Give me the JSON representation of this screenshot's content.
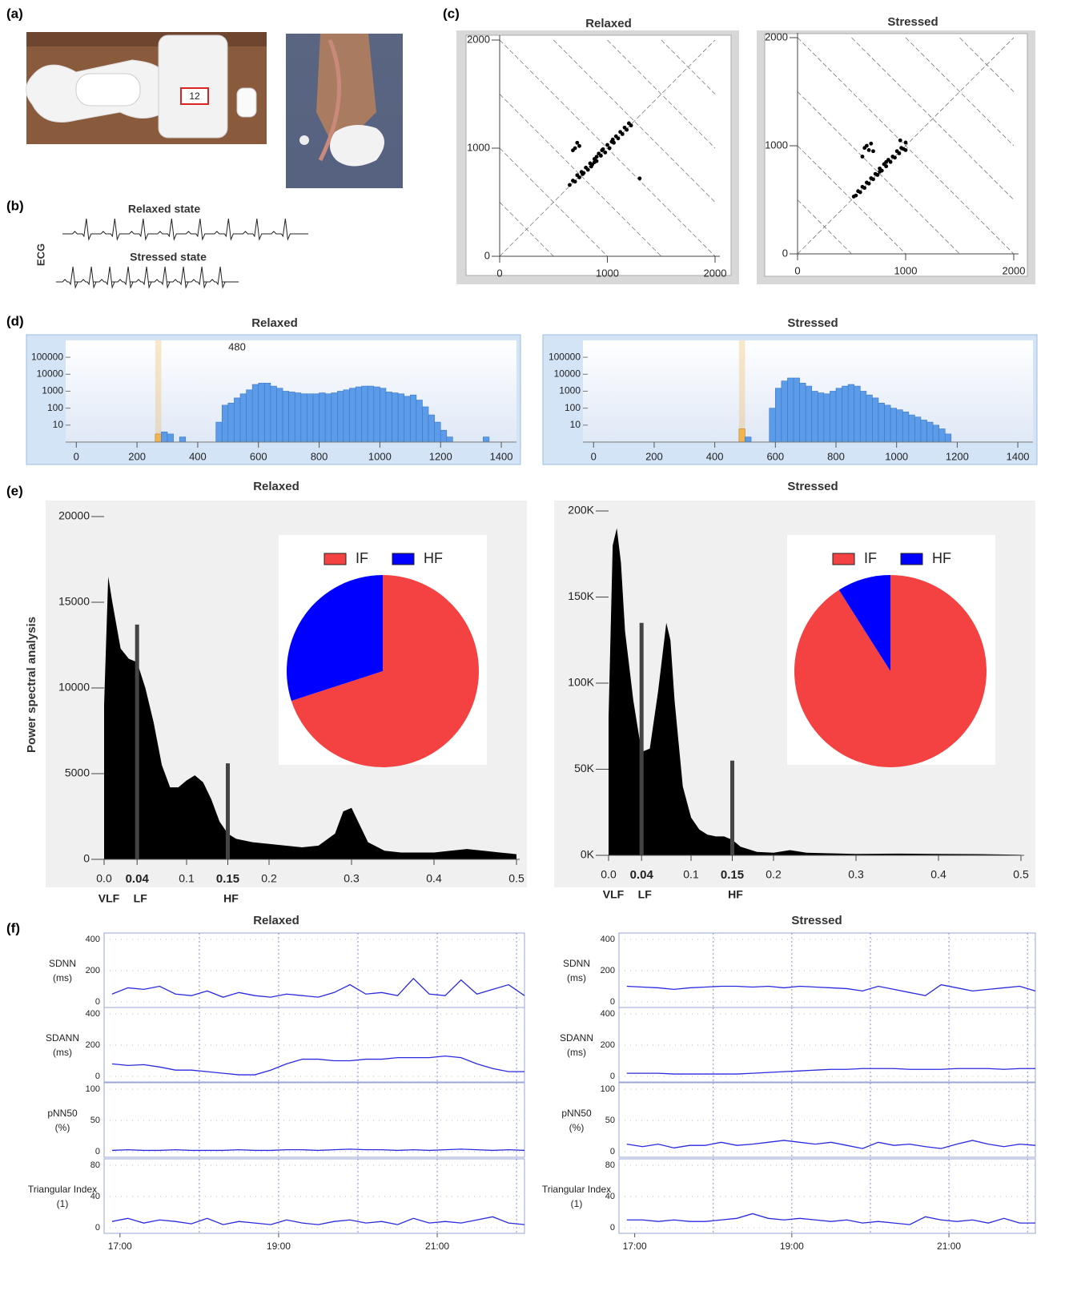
{
  "panel_labels": [
    "(a)",
    "(b)",
    "(c)",
    "(d)",
    "(e)",
    "(f)"
  ],
  "photo": {
    "device_label": "12"
  },
  "ecg": {
    "ylabel": "ECG",
    "traces": [
      "Relaxed state",
      "Stressed  state"
    ]
  },
  "chart_data": [
    {
      "type": "scatter",
      "title": "Relaxed",
      "color": "#000000",
      "x": [
        650,
        680,
        700,
        720,
        740,
        760,
        780,
        800,
        820,
        840,
        860,
        880,
        900,
        920,
        940,
        960,
        980,
        1000,
        1020,
        1040,
        1060,
        1080,
        1100,
        1120,
        1140,
        1160,
        1180,
        1200,
        1220,
        700,
        720,
        680,
        740,
        770,
        900,
        850,
        1300,
        950,
        1050,
        880
      ],
      "y": [
        660,
        700,
        690,
        750,
        730,
        780,
        770,
        820,
        800,
        860,
        850,
        900,
        880,
        950,
        930,
        990,
        960,
        1030,
        1000,
        1060,
        1050,
        1110,
        1090,
        1150,
        1130,
        1190,
        1170,
        1230,
        1210,
        1000,
        1050,
        980,
        1020,
        760,
        920,
        830,
        720,
        980,
        1080,
        870
      ],
      "xlim": [
        0,
        2000
      ],
      "ylim": [
        0,
        2000
      ],
      "xticks": [
        0,
        1000,
        2000
      ],
      "yticks": [
        0,
        1000,
        2000
      ]
    },
    {
      "type": "scatter",
      "title": "Stressed",
      "color": "#000000",
      "x": [
        520,
        540,
        560,
        580,
        600,
        620,
        640,
        660,
        680,
        700,
        720,
        740,
        760,
        780,
        800,
        820,
        840,
        860,
        880,
        900,
        920,
        940,
        960,
        980,
        1000,
        620,
        640,
        660,
        680,
        700,
        600,
        1000,
        950,
        820,
        760
      ],
      "y": [
        530,
        540,
        580,
        570,
        620,
        610,
        660,
        650,
        700,
        690,
        740,
        730,
        790,
        770,
        830,
        810,
        870,
        850,
        900,
        890,
        950,
        930,
        980,
        970,
        1030,
        980,
        1000,
        960,
        1020,
        950,
        900,
        960,
        1050,
        850,
        760
      ],
      "xlim": [
        0,
        2000
      ],
      "ylim": [
        0,
        2000
      ],
      "xticks": [
        0,
        1000,
        2000
      ],
      "yticks": [
        0,
        1000,
        2000
      ]
    },
    {
      "type": "histogram",
      "title": "Relaxed",
      "annotation": "480",
      "color": "#5b9be8",
      "log_y": true,
      "highlight": {
        "x": 260,
        "color": "#f0b450"
      },
      "bins": [
        240,
        260,
        280,
        300,
        320,
        340,
        360,
        380,
        400,
        420,
        440,
        460,
        480,
        500,
        520,
        540,
        560,
        580,
        600,
        620,
        640,
        660,
        680,
        700,
        720,
        740,
        760,
        780,
        800,
        820,
        840,
        860,
        880,
        900,
        920,
        940,
        960,
        980,
        1000,
        1020,
        1040,
        1060,
        1080,
        1100,
        1120,
        1140,
        1160,
        1180,
        1200,
        1220,
        1240,
        1260,
        1280,
        1300,
        1320,
        1340,
        1360
      ],
      "values": [
        0,
        3,
        4,
        3,
        0,
        2,
        0,
        0,
        0,
        0,
        0,
        15,
        150,
        200,
        400,
        700,
        1200,
        2500,
        3000,
        3000,
        2000,
        1500,
        1000,
        900,
        800,
        700,
        700,
        700,
        800,
        700,
        800,
        1000,
        1200,
        1500,
        1800,
        2000,
        2000,
        1800,
        1500,
        900,
        800,
        700,
        500,
        600,
        300,
        120,
        40,
        15,
        5,
        2,
        0,
        0,
        0,
        0,
        0,
        2
      ],
      "xlim": [
        -35,
        1450
      ],
      "ylim": [
        1,
        300000
      ],
      "xticks": [
        0,
        200,
        400,
        600,
        800,
        1000,
        1200,
        1400
      ],
      "yticks": [
        10,
        100,
        1000,
        10000,
        100000
      ]
    },
    {
      "type": "histogram",
      "title": "Stressed",
      "color": "#5b9be8",
      "log_y": true,
      "highlight": {
        "x": 480,
        "color": "#f0b450"
      },
      "bins": [
        240,
        260,
        280,
        300,
        320,
        340,
        360,
        380,
        400,
        420,
        440,
        460,
        480,
        500,
        520,
        540,
        560,
        580,
        600,
        620,
        640,
        660,
        680,
        700,
        720,
        740,
        760,
        780,
        800,
        820,
        840,
        860,
        880,
        900,
        920,
        940,
        960,
        980,
        1000,
        1020,
        1040,
        1060,
        1080,
        1100,
        1120,
        1140,
        1160,
        1180,
        1200,
        1220,
        1240,
        1260,
        1280,
        1300,
        1320,
        1340,
        1360
      ],
      "values": [
        0,
        0,
        0,
        0,
        0,
        0,
        0,
        0,
        0,
        0,
        0,
        0,
        6,
        2,
        0,
        0,
        0,
        100,
        1500,
        4000,
        6000,
        6000,
        3000,
        2000,
        1000,
        800,
        700,
        1000,
        1500,
        2000,
        2500,
        2000,
        1000,
        600,
        400,
        200,
        150,
        100,
        80,
        60,
        40,
        30,
        20,
        15,
        10,
        6,
        3,
        0,
        0,
        0,
        0,
        0,
        0,
        0,
        0,
        0
      ],
      "xlim": [
        -35,
        1450
      ],
      "ylim": [
        1,
        300000
      ],
      "xticks": [
        0,
        200,
        400,
        600,
        800,
        1000,
        1200,
        1400
      ],
      "yticks": [
        10,
        100,
        1000,
        10000,
        100000
      ]
    },
    {
      "type": "area",
      "title": "Relaxed",
      "ylabel": "Power spectral analysis",
      "color": "#000000",
      "x": [
        0,
        0.005,
        0.01,
        0.02,
        0.03,
        0.04,
        0.05,
        0.06,
        0.07,
        0.08,
        0.09,
        0.1,
        0.11,
        0.12,
        0.13,
        0.14,
        0.15,
        0.16,
        0.18,
        0.2,
        0.22,
        0.24,
        0.26,
        0.28,
        0.29,
        0.3,
        0.31,
        0.32,
        0.34,
        0.36,
        0.4,
        0.42,
        0.44,
        0.46,
        0.48,
        0.5
      ],
      "values": [
        9000,
        16500,
        15000,
        12300,
        11700,
        11500,
        10000,
        8000,
        5500,
        4200,
        4200,
        4600,
        4900,
        4500,
        3500,
        2200,
        1500,
        1200,
        1000,
        900,
        800,
        700,
        800,
        1500,
        2800,
        3000,
        2000,
        1000,
        500,
        400,
        400,
        500,
        600,
        500,
        400,
        300
      ],
      "xlim": [
        0,
        0.5
      ],
      "ylim": [
        0,
        20000
      ],
      "xticks": [
        {
          "value": 0,
          "label": "0.0"
        },
        0.04,
        0.1,
        0.15,
        0.2,
        0.3,
        0.4,
        0.5
      ],
      "yticks": [
        0,
        5000,
        10000,
        15000,
        20000
      ],
      "band_lines": [
        {
          "x": 0.04,
          "top": 13700
        },
        {
          "x": 0.15,
          "top": 5600
        }
      ],
      "band_labels": [
        "VLF",
        "LF",
        "HF"
      ]
    },
    {
      "type": "area",
      "title": "Stressed",
      "color": "#000000",
      "x": [
        0,
        0.005,
        0.01,
        0.015,
        0.02,
        0.03,
        0.04,
        0.05,
        0.06,
        0.07,
        0.075,
        0.08,
        0.09,
        0.1,
        0.11,
        0.12,
        0.13,
        0.14,
        0.15,
        0.16,
        0.18,
        0.2,
        0.22,
        0.24,
        0.3,
        0.35,
        0.4,
        0.45,
        0.5
      ],
      "values": [
        80000,
        180000,
        190000,
        170000,
        130000,
        90000,
        60000,
        62000,
        95000,
        135000,
        125000,
        90000,
        40000,
        22000,
        15000,
        12000,
        11000,
        11000,
        9000,
        5000,
        2000,
        1500,
        3000,
        1500,
        800,
        1000,
        800,
        700,
        300
      ],
      "xlim": [
        0,
        0.5
      ],
      "ylim": [
        0,
        200000
      ],
      "xticks": [
        {
          "value": 0,
          "label": "0.0"
        },
        0.04,
        0.1,
        0.15,
        0.2,
        0.3,
        0.4,
        0.5
      ],
      "yticks": [
        {
          "value": 0,
          "label": "0K"
        },
        {
          "value": 50000,
          "label": "50K"
        },
        {
          "value": 100000,
          "label": "100K"
        },
        {
          "value": 150000,
          "label": "150K"
        },
        {
          "value": 200000,
          "label": "200K"
        }
      ],
      "band_lines": [
        {
          "x": 0.04,
          "top": 135000
        },
        {
          "x": 0.15,
          "top": 55000
        }
      ],
      "band_labels": [
        "VLF",
        "LF",
        "HF"
      ]
    },
    {
      "type": "pie",
      "categories": [
        "IF",
        "HF"
      ],
      "values": [
        70,
        30
      ],
      "colors": [
        "#f44242",
        "#0000ff"
      ]
    },
    {
      "type": "pie",
      "categories": [
        "IF",
        "HF"
      ],
      "values": [
        91,
        9
      ],
      "colors": [
        "#f44242",
        "#0000ff"
      ]
    },
    {
      "type": "line",
      "title": "Relaxed",
      "color": "#2a2ae0",
      "x": [
        16.9,
        17.1,
        17.3,
        17.5,
        17.7,
        17.9,
        18.1,
        18.3,
        18.5,
        18.7,
        18.9,
        19.1,
        19.3,
        19.5,
        19.7,
        19.9,
        20.1,
        20.3,
        20.5,
        20.7,
        20.9,
        21.1,
        21.3,
        21.5,
        21.7,
        21.9,
        22.1
      ],
      "xlim": [
        16.8,
        22.1
      ],
      "xticks": [
        {
          "value": 17,
          "label": "17:00"
        },
        {
          "value": 19,
          "label": "19:00"
        },
        {
          "value": 21,
          "label": "21:00"
        }
      ],
      "xgrid": [
        18,
        19,
        20,
        21,
        22
      ],
      "panels": [
        {
          "ylabel": "SDNN",
          "yunit": "(ms)",
          "ylim": [
            0,
            400
          ],
          "yticks": [
            0,
            200,
            400
          ],
          "values": [
            50,
            90,
            80,
            100,
            50,
            40,
            70,
            30,
            60,
            40,
            30,
            50,
            40,
            30,
            60,
            110,
            50,
            60,
            40,
            150,
            50,
            40,
            140,
            50,
            80,
            110,
            40
          ]
        },
        {
          "ylabel": "SDANN",
          "yunit": "(ms)",
          "ylim": [
            0,
            400
          ],
          "yticks": [
            0,
            200,
            400
          ],
          "values": [
            80,
            70,
            75,
            60,
            40,
            40,
            30,
            20,
            10,
            10,
            40,
            80,
            110,
            110,
            100,
            100,
            110,
            110,
            120,
            120,
            120,
            130,
            120,
            80,
            50,
            30,
            30
          ]
        },
        {
          "ylabel": "pNN50",
          "yunit": "(%)",
          "ylim": [
            0,
            100
          ],
          "yticks": [
            0,
            50,
            100
          ],
          "values": [
            2,
            3,
            2,
            2,
            3,
            2,
            2,
            2,
            3,
            2,
            2,
            3,
            3,
            2,
            3,
            4,
            3,
            3,
            2,
            3,
            2,
            3,
            4,
            3,
            2,
            3,
            2
          ]
        },
        {
          "ylabel": "Triangular Index",
          "yunit": "(1)",
          "ylim": [
            0,
            80
          ],
          "yticks": [
            0,
            40,
            80
          ],
          "values": [
            8,
            12,
            6,
            10,
            8,
            5,
            12,
            4,
            8,
            6,
            4,
            10,
            6,
            4,
            8,
            10,
            6,
            8,
            4,
            12,
            6,
            8,
            6,
            10,
            14,
            6,
            4
          ]
        }
      ]
    },
    {
      "type": "line",
      "title": "Stressed",
      "color": "#2a2ae0",
      "x": [
        16.9,
        17.1,
        17.3,
        17.5,
        17.7,
        17.9,
        18.1,
        18.3,
        18.5,
        18.7,
        18.9,
        19.1,
        19.3,
        19.5,
        19.7,
        19.9,
        20.1,
        20.3,
        20.5,
        20.7,
        20.9,
        21.1,
        21.3,
        21.5,
        21.7,
        21.9,
        22.1
      ],
      "xlim": [
        16.8,
        22.1
      ],
      "xticks": [
        {
          "value": 17,
          "label": "17:00"
        },
        {
          "value": 19,
          "label": "19:00"
        },
        {
          "value": 21,
          "label": "21:00"
        }
      ],
      "xgrid": [
        18,
        19,
        20,
        21,
        22
      ],
      "panels": [
        {
          "ylabel": "SDNN",
          "yunit": "(ms)",
          "ylim": [
            0,
            400
          ],
          "yticks": [
            0,
            200,
            400
          ],
          "values": [
            100,
            95,
            90,
            80,
            90,
            95,
            100,
            100,
            95,
            100,
            90,
            100,
            95,
            90,
            85,
            70,
            100,
            80,
            60,
            40,
            110,
            90,
            70,
            80,
            90,
            100,
            70
          ]
        },
        {
          "ylabel": "SDANN",
          "yunit": "(ms)",
          "ylim": [
            0,
            400
          ],
          "yticks": [
            0,
            200,
            400
          ],
          "values": [
            20,
            20,
            20,
            15,
            15,
            15,
            15,
            15,
            20,
            25,
            30,
            35,
            40,
            45,
            45,
            50,
            50,
            50,
            45,
            45,
            45,
            50,
            50,
            50,
            45,
            50,
            50
          ]
        },
        {
          "ylabel": "pNN50",
          "yunit": "(%)",
          "ylim": [
            0,
            100
          ],
          "yticks": [
            0,
            50,
            100
          ],
          "values": [
            12,
            8,
            12,
            6,
            10,
            10,
            15,
            10,
            12,
            15,
            18,
            15,
            12,
            15,
            10,
            5,
            15,
            10,
            12,
            8,
            5,
            12,
            18,
            12,
            8,
            12,
            10
          ]
        },
        {
          "ylabel": "Triangular Index",
          "yunit": "(1)",
          "ylim": [
            0,
            80
          ],
          "yticks": [
            0,
            40,
            80
          ],
          "values": [
            10,
            10,
            8,
            10,
            8,
            8,
            10,
            12,
            18,
            12,
            10,
            12,
            10,
            8,
            10,
            6,
            8,
            6,
            4,
            14,
            10,
            8,
            10,
            6,
            12,
            6,
            6
          ]
        }
      ]
    }
  ]
}
